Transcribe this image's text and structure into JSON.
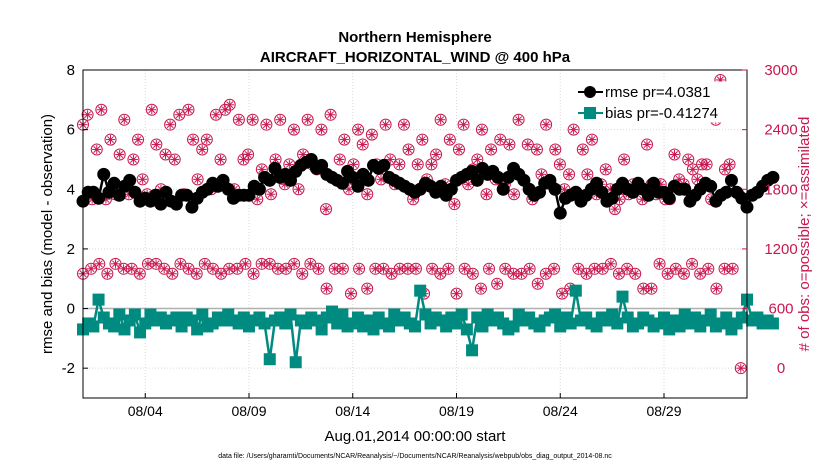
{
  "chart_data": {
    "type": "line",
    "title": "Northern Hemisphere",
    "subtitle": "AIRCRAFT_HORIZONTAL_WIND @ 400 hPa",
    "xlabel": "Aug.01,2014 00:00:00 start",
    "ylabel": "rmse and bias (model - observation)",
    "y2label": "# of obs: o=possible; ×=assimilated",
    "footnote": "data file: /Users/gharamti/Documents/NCAR/Reanalysis/~/Documents/NCAR/Reanalysis/webpub/obs_diag_output_2014-08.nc",
    "xlim": [
      1,
      33
    ],
    "ylim": [
      -3,
      8
    ],
    "y2lim": [
      -300,
      3000
    ],
    "x_ticks": [
      4,
      9,
      14,
      19,
      24,
      29
    ],
    "x_tick_labels": [
      "08/04",
      "08/09",
      "08/14",
      "08/19",
      "08/24",
      "08/29"
    ],
    "y_ticks": [
      -2,
      0,
      2,
      4,
      6,
      8
    ],
    "y_tick_labels": [
      "-2",
      "0",
      "2",
      "4",
      "6",
      "8"
    ],
    "y2_ticks": [
      0,
      600,
      1200,
      1800,
      2400,
      3000
    ],
    "y2_tick_labels": [
      "0",
      "600",
      "1200",
      "1800",
      "2400",
      "3000"
    ],
    "grid": true,
    "legend_position": "top-right",
    "reference_line_y": 0,
    "x_start": 1.0,
    "x_step": 0.25,
    "series": [
      {
        "name": "rmse",
        "label": "rmse pr=4.0381",
        "color": "#000000",
        "marker": "circle",
        "axis": "left",
        "values": [
          3.6,
          3.9,
          3.9,
          3.7,
          4.5,
          3.9,
          4.2,
          3.8,
          4.1,
          4.3,
          3.9,
          3.6,
          3.7,
          3.6,
          3.8,
          3.5,
          3.9,
          3.6,
          3.5,
          3.8,
          3.8,
          3.4,
          3.7,
          3.9,
          4.0,
          4.2,
          4.1,
          4.3,
          4.0,
          3.7,
          3.8,
          3.8,
          3.8,
          4.1,
          4.0,
          4.4,
          4.3,
          4.7,
          4.4,
          4.5,
          4.3,
          4.6,
          4.8,
          4.9,
          5.0,
          4.7,
          4.8,
          4.5,
          4.4,
          4.3,
          4.2,
          4.6,
          4.4,
          4.1,
          4.5,
          4.3,
          4.8,
          4.7,
          4.8,
          4.4,
          4.3,
          4.2,
          4.1,
          4.0,
          3.9,
          4.0,
          4.2,
          4.1,
          3.9,
          4.1,
          3.8,
          4.0,
          4.3,
          4.4,
          4.5,
          4.6,
          4.3,
          4.7,
          4.5,
          4.6,
          4.4,
          4.0,
          4.4,
          4.7,
          4.5,
          4.3,
          4.0,
          3.8,
          3.9,
          4.2,
          4.3,
          4.0,
          3.2,
          3.7,
          3.8,
          3.9,
          3.6,
          3.8,
          4.0,
          4.2,
          3.9,
          3.6,
          3.7,
          4.0,
          4.2,
          4.0,
          3.9,
          4.2,
          4.0,
          3.8,
          4.2,
          3.9,
          3.9,
          3.7,
          4.1,
          4.0,
          4.0,
          3.6,
          3.8,
          4.0,
          4.2,
          4.1,
          3.6,
          3.8,
          3.9,
          4.3,
          3.9,
          3.7,
          3.4,
          3.8,
          3.9,
          4.1,
          4.3,
          4.4
        ]
      },
      {
        "name": "bias",
        "label": "bias pr=-0.41274",
        "color": "#008b80",
        "marker": "square",
        "axis": "left",
        "values": [
          -0.7,
          -0.5,
          -0.6,
          0.3,
          -0.3,
          -0.5,
          -0.6,
          -0.2,
          -0.7,
          -0.4,
          -0.2,
          -0.8,
          -0.5,
          -0.2,
          -0.4,
          -0.3,
          -0.5,
          -0.4,
          -0.3,
          -0.6,
          -0.3,
          -0.4,
          -0.7,
          -0.2,
          -0.6,
          -0.5,
          -0.3,
          -0.4,
          -0.2,
          -0.4,
          -0.5,
          -0.3,
          -0.6,
          -0.4,
          -0.3,
          -0.5,
          -1.7,
          -0.4,
          -0.3,
          -0.5,
          -0.2,
          -1.8,
          -0.4,
          -0.5,
          -0.3,
          -0.4,
          -0.7,
          -0.3,
          -0.1,
          -0.5,
          -0.2,
          -0.6,
          -0.5,
          -0.3,
          -0.6,
          -0.4,
          -0.7,
          -0.3,
          -0.5,
          -0.6,
          -0.2,
          -0.4,
          -0.3,
          -0.5,
          -0.6,
          0.6,
          -0.2,
          -0.5,
          -0.3,
          -0.4,
          -0.6,
          -0.3,
          -0.5,
          -0.2,
          -0.7,
          -1.4,
          -0.3,
          -0.6,
          -0.2,
          -0.4,
          -0.3,
          -0.5,
          -0.7,
          -0.6,
          -0.2,
          -0.4,
          -0.3,
          -0.5,
          -0.6,
          -0.4,
          -0.3,
          -0.2,
          -0.6,
          -0.3,
          -0.5,
          0.6,
          -0.4,
          -0.3,
          -0.5,
          -0.6,
          -0.3,
          -0.4,
          -0.2,
          -0.5,
          0.4,
          -0.3,
          -0.6,
          -0.5,
          -0.3,
          -0.4,
          -0.6,
          -0.5,
          -0.3,
          -0.7,
          -0.4,
          -0.6,
          -0.2,
          -0.5,
          -0.3,
          -0.6,
          -0.4,
          -0.2,
          -0.6,
          -0.5,
          -0.3,
          -0.7,
          -0.5,
          -0.3,
          0.3,
          -0.4,
          -0.3,
          -0.5,
          -0.4,
          -0.5
        ]
      },
      {
        "name": "obs possible",
        "color": "#c8184f",
        "marker": "open-circle",
        "axis": "right",
        "values": [
          2450,
          2550,
          1700,
          2200,
          2600,
          1700,
          2300,
          1750,
          2150,
          2500,
          1750,
          2100,
          2300,
          1900,
          1750,
          2600,
          2250,
          1800,
          2150,
          2450,
          2100,
          2550,
          1750,
          2600,
          2300,
          1900,
          2200,
          2300,
          1800,
          2550,
          2100,
          2600,
          2650,
          1800,
          2500,
          2100,
          2150,
          2500,
          1700,
          2000,
          2450,
          1750,
          2100,
          2500,
          1850,
          2050,
          2400,
          1800,
          2150,
          2500,
          2050,
          2000,
          2400,
          1600,
          2550,
          1900,
          2100,
          2300,
          1800,
          2050,
          2400,
          2250,
          1750,
          2350,
          2050,
          1900,
          2450,
          2100,
          1850,
          2050,
          2450,
          2200,
          1700,
          2050,
          2300,
          1900,
          2050,
          2150,
          2500,
          1850,
          2300,
          1650,
          2200,
          2450,
          1850,
          2000,
          2100,
          2400,
          1750,
          2200,
          1900,
          2300,
          1850,
          2250,
          1750,
          2500,
          1900,
          2250,
          1700,
          2200,
          1950,
          2450,
          1850,
          2200,
          2050,
          1800,
          1950,
          2400,
          1750,
          2200,
          1950,
          2300,
          1750,
          1850,
          2000,
          1800,
          1600,
          1700,
          2100,
          1750,
          1850,
          1800,
          1700,
          2250,
          1850,
          1750,
          1850,
          1700,
          1700,
          2150,
          1900,
          1850,
          2100,
          2000,
          1900,
          2050,
          2050,
          1700,
          2500,
          2900,
          2000,
          2050,
          2800,
          1750
        ],
        "extra": [
          950,
          1000,
          1050,
          950,
          1050,
          1000,
          1000,
          950,
          1050,
          1050,
          1000,
          950,
          1050,
          1000,
          950,
          1050,
          1000,
          950,
          1000,
          1000,
          1050,
          950,
          1050,
          1050,
          1000,
          1000,
          1050,
          950,
          1050,
          1000,
          800,
          1000,
          1000,
          750,
          1000,
          800,
          1000,
          1000,
          950,
          1000,
          1000,
          1000,
          750,
          1000,
          950,
          1000,
          750,
          1000,
          950,
          800,
          1000,
          850,
          1000,
          950,
          950,
          1000,
          850,
          950,
          1000,
          750,
          800,
          1000,
          950,
          1000,
          1000,
          1050,
          950,
          1000,
          950,
          800,
          800,
          1050,
          950,
          1000,
          950,
          1050,
          950,
          1000,
          800,
          1000,
          1000,
          0
        ]
      }
    ]
  }
}
